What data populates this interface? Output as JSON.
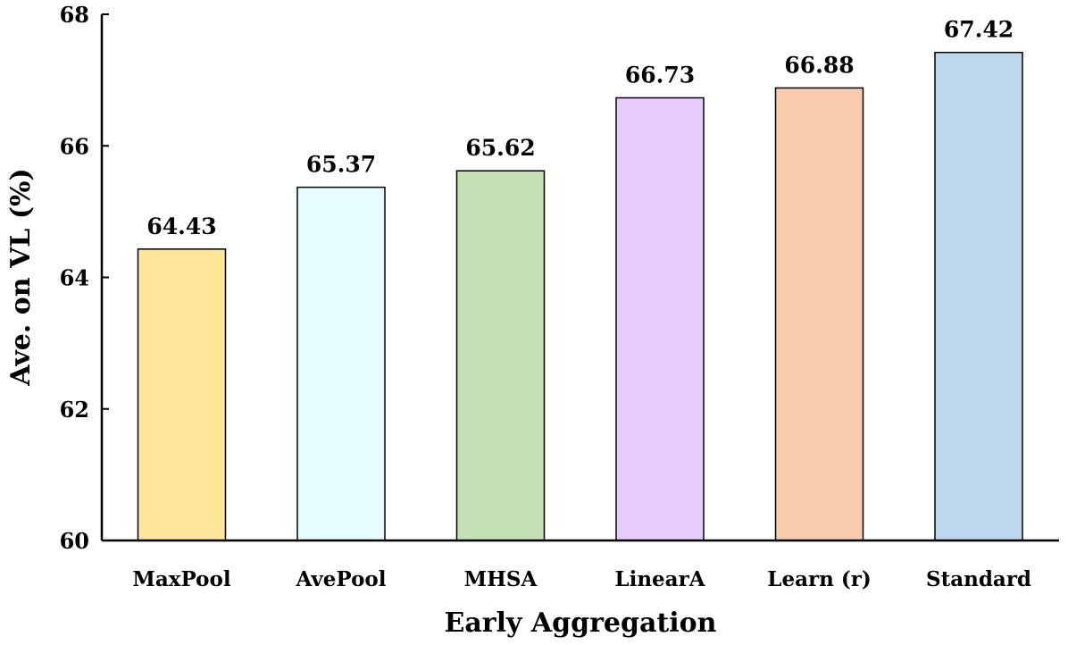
{
  "chart_data": {
    "type": "bar",
    "title": "",
    "xlabel": "Early Aggregation",
    "ylabel": "Ave. on VL (%)",
    "ylim": [
      60,
      68
    ],
    "yticks": [
      60,
      62,
      64,
      66,
      68
    ],
    "grid": false,
    "categories": [
      "MaxPool",
      "AvePool",
      "MHSA",
      "LinearA",
      "Learn (r)",
      "Standard"
    ],
    "values": [
      64.43,
      65.37,
      65.62,
      66.73,
      66.88,
      67.42
    ],
    "value_labels": [
      "64.43",
      "65.37",
      "65.62",
      "66.73",
      "66.88",
      "67.42"
    ],
    "colors": [
      "#FFE699",
      "#E6FDFF",
      "#C5E0B4",
      "#E6CCFF",
      "#F8CBAD",
      "#BDD7EE"
    ]
  }
}
